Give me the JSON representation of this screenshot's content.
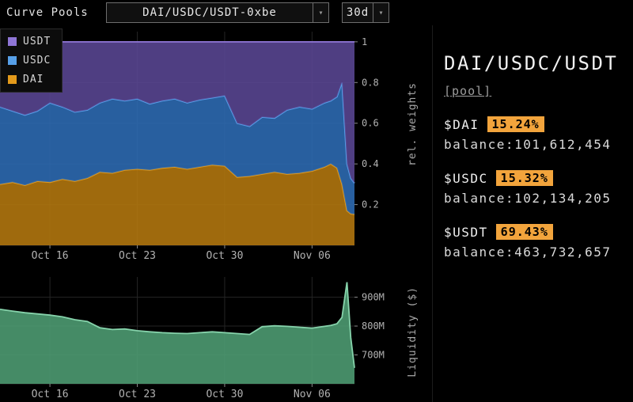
{
  "topbar": {
    "app_title": "Curve Pools",
    "pool_dropdown": {
      "value": "DAI/USDC/USDT-0xbe"
    },
    "range_dropdown": {
      "value": "30d"
    }
  },
  "panel": {
    "title": "DAI/USDC/USDT",
    "pool_link": "[pool]",
    "badge_color": "#f2a43c",
    "coins": [
      {
        "name": "$DAI",
        "weight": "15.24%",
        "balance": "balance:101,612,454"
      },
      {
        "name": "$USDC",
        "weight": "15.32%",
        "balance": "balance:102,134,205"
      },
      {
        "name": "$USDT",
        "weight": "69.43%",
        "balance": "balance:463,732,657"
      }
    ]
  },
  "chart_data": [
    {
      "type": "area",
      "stacked": true,
      "ylabel": "rel. weights",
      "x_tick_labels": [
        "Oct 16",
        "Oct 23",
        "Oct 30",
        "Nov 06"
      ],
      "x_tick_positions": [
        4,
        11,
        18,
        25
      ],
      "x_range": [
        0,
        28.4
      ],
      "ylim": [
        0,
        1.05
      ],
      "y_ticks": [
        0.2,
        0.4,
        0.6,
        0.8,
        1
      ],
      "y_tick_labels": [
        "0.2",
        "0.4",
        "0.6",
        "0.8",
        "1"
      ],
      "x": [
        0,
        1,
        2,
        3,
        4,
        5,
        6,
        7,
        8,
        9,
        10,
        11,
        12,
        13,
        14,
        15,
        16,
        17,
        18,
        19,
        20,
        21,
        22,
        23,
        24,
        25,
        26,
        26.5,
        27,
        27.4,
        27.8,
        28.1,
        28.4
      ],
      "series": [
        {
          "name": "DAI",
          "color": "#b5790f",
          "line": "#e39a1b",
          "values": [
            0.3,
            0.31,
            0.295,
            0.315,
            0.31,
            0.325,
            0.315,
            0.33,
            0.36,
            0.355,
            0.37,
            0.375,
            0.37,
            0.38,
            0.385,
            0.375,
            0.385,
            0.395,
            0.39,
            0.335,
            0.34,
            0.35,
            0.36,
            0.35,
            0.355,
            0.365,
            0.385,
            0.4,
            0.38,
            0.3,
            0.17,
            0.155,
            0.1524
          ]
        },
        {
          "name": "USDC",
          "color": "#2e6cb5",
          "line": "#57a0e8",
          "values": [
            0.38,
            0.35,
            0.345,
            0.345,
            0.39,
            0.355,
            0.34,
            0.335,
            0.34,
            0.365,
            0.34,
            0.345,
            0.325,
            0.33,
            0.335,
            0.325,
            0.33,
            0.33,
            0.345,
            0.265,
            0.245,
            0.28,
            0.265,
            0.315,
            0.325,
            0.305,
            0.315,
            0.31,
            0.35,
            0.5,
            0.23,
            0.175,
            0.1532
          ]
        },
        {
          "name": "USDT",
          "color": "#5a4794",
          "line": "#8f76d6",
          "values": [
            0.32,
            0.34,
            0.36,
            0.34,
            0.3,
            0.32,
            0.345,
            0.335,
            0.3,
            0.28,
            0.29,
            0.28,
            0.305,
            0.29,
            0.28,
            0.3,
            0.285,
            0.275,
            0.265,
            0.4,
            0.415,
            0.37,
            0.375,
            0.335,
            0.32,
            0.33,
            0.3,
            0.29,
            0.27,
            0.2,
            0.6,
            0.67,
            0.6944
          ]
        }
      ]
    },
    {
      "type": "area",
      "stacked": false,
      "ylabel": "Liquidity ($)",
      "x_tick_labels": [
        "Oct 16",
        "Oct 23",
        "Oct 30",
        "Nov 06"
      ],
      "x_tick_positions": [
        4,
        11,
        18,
        25
      ],
      "x_range": [
        0,
        28.4
      ],
      "ylim": [
        600,
        970
      ],
      "y_ticks": [
        700,
        800,
        900
      ],
      "y_tick_labels": [
        "700M",
        "800M",
        "900M"
      ],
      "x": [
        0,
        1,
        2,
        3,
        4,
        5,
        6,
        7,
        8,
        9,
        10,
        11,
        12,
        13,
        14,
        15,
        16,
        17,
        18,
        19,
        20,
        21,
        22,
        23,
        24,
        25,
        26,
        26.5,
        27,
        27.4,
        27.8,
        28.1,
        28.4
      ],
      "series": [
        {
          "name": "Liquidity",
          "color": "#4f9e74",
          "line": "#86d3ab",
          "values": [
            858,
            852,
            846,
            842,
            838,
            832,
            822,
            816,
            794,
            788,
            790,
            784,
            780,
            777,
            775,
            774,
            777,
            780,
            777,
            774,
            771,
            798,
            801,
            799,
            796,
            793,
            799,
            802,
            808,
            830,
            952,
            760,
            655
          ]
        }
      ]
    }
  ]
}
